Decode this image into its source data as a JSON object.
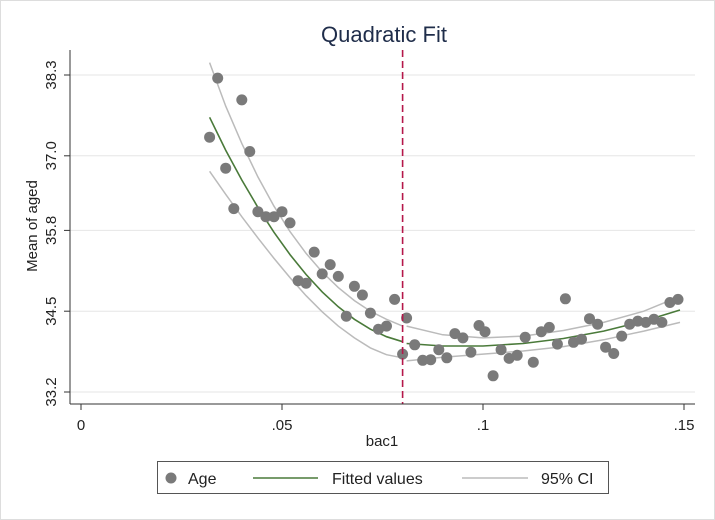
{
  "chart_data": {
    "type": "scatter",
    "title": "Quadratic Fit",
    "xlabel": "bac1",
    "ylabel": "Mean of aged",
    "xlim": [
      0,
      0.15
    ],
    "ylim": [
      33.2,
      38.3
    ],
    "xticks": [
      0,
      0.05,
      0.1,
      0.15
    ],
    "xtick_labels": [
      "0",
      ".05",
      ".1",
      ".15"
    ],
    "yticks": [
      33.2,
      34.5,
      35.8,
      37.0,
      38.3
    ],
    "ytick_labels": [
      "33.2",
      "34.5",
      "35.8",
      "37.0",
      "38.3"
    ],
    "cutoff_x": 0.08,
    "grid": true,
    "legend_position": "bottom",
    "colors": {
      "points": "#7a7a7a",
      "fitted": "#4a7a3a",
      "ci": "#bbbbbb",
      "cutoff": "#b5174a"
    },
    "legend": [
      {
        "label": "Age",
        "kind": "marker"
      },
      {
        "label": "Fitted values",
        "kind": "fitted-line"
      },
      {
        "label": "95% CI",
        "kind": "ci-line"
      }
    ],
    "series": [
      {
        "name": "Age",
        "kind": "scatter",
        "points": [
          [
            0.032,
            37.3
          ],
          [
            0.034,
            38.25
          ],
          [
            0.036,
            36.8
          ],
          [
            0.038,
            36.15
          ],
          [
            0.04,
            37.9
          ],
          [
            0.042,
            37.07
          ],
          [
            0.044,
            36.1
          ],
          [
            0.046,
            36.02
          ],
          [
            0.048,
            36.02
          ],
          [
            0.05,
            36.1
          ],
          [
            0.052,
            35.92
          ],
          [
            0.054,
            34.99
          ],
          [
            0.056,
            34.95
          ],
          [
            0.058,
            35.45
          ],
          [
            0.06,
            35.1
          ],
          [
            0.062,
            35.25
          ],
          [
            0.064,
            35.06
          ],
          [
            0.066,
            34.42
          ],
          [
            0.068,
            34.9
          ],
          [
            0.07,
            34.76
          ],
          [
            0.072,
            34.47
          ],
          [
            0.074,
            34.21
          ],
          [
            0.076,
            34.26
          ],
          [
            0.078,
            34.69
          ],
          [
            0.08,
            33.81
          ],
          [
            0.081,
            34.39
          ],
          [
            0.083,
            33.96
          ],
          [
            0.085,
            33.71
          ],
          [
            0.087,
            33.72
          ],
          [
            0.089,
            33.88
          ],
          [
            0.091,
            33.75
          ],
          [
            0.093,
            34.14
          ],
          [
            0.095,
            34.07
          ],
          [
            0.097,
            33.84
          ],
          [
            0.099,
            34.27
          ],
          [
            0.1005,
            34.17
          ],
          [
            0.1025,
            33.46
          ],
          [
            0.1045,
            33.88
          ],
          [
            0.1065,
            33.74
          ],
          [
            0.1085,
            33.79
          ],
          [
            0.1105,
            34.08
          ],
          [
            0.1125,
            33.68
          ],
          [
            0.1145,
            34.17
          ],
          [
            0.1165,
            34.24
          ],
          [
            0.1185,
            33.97
          ],
          [
            0.1205,
            34.7
          ],
          [
            0.1225,
            34.0
          ],
          [
            0.1245,
            34.05
          ],
          [
            0.1265,
            34.38
          ],
          [
            0.1285,
            34.29
          ],
          [
            0.1305,
            33.92
          ],
          [
            0.1325,
            33.82
          ],
          [
            0.1345,
            34.1
          ],
          [
            0.1365,
            34.29
          ],
          [
            0.1385,
            34.34
          ],
          [
            0.1405,
            34.32
          ],
          [
            0.1425,
            34.37
          ],
          [
            0.1445,
            34.32
          ],
          [
            0.1465,
            34.64
          ],
          [
            0.1485,
            34.69
          ]
        ]
      },
      {
        "name": "Fitted values",
        "kind": "line",
        "segments": [
          [
            [
              0.032,
              37.62
            ],
            [
              0.036,
              37.09
            ],
            [
              0.04,
              36.61
            ],
            [
              0.044,
              36.17
            ],
            [
              0.048,
              35.77
            ],
            [
              0.052,
              35.41
            ],
            [
              0.056,
              35.09
            ],
            [
              0.06,
              34.81
            ],
            [
              0.064,
              34.57
            ],
            [
              0.068,
              34.37
            ],
            [
              0.072,
              34.21
            ],
            [
              0.076,
              34.09
            ],
            [
              0.08,
              34.01
            ]
          ],
          [
            [
              0.081,
              33.98
            ],
            [
              0.09,
              33.94
            ],
            [
              0.1,
              33.94
            ],
            [
              0.11,
              33.98
            ],
            [
              0.12,
              34.06
            ],
            [
              0.13,
              34.18
            ],
            [
              0.14,
              34.34
            ],
            [
              0.149,
              34.52
            ]
          ]
        ]
      },
      {
        "name": "95% CI",
        "kind": "line",
        "segments": [
          [
            [
              0.032,
              38.5
            ],
            [
              0.036,
              37.8
            ],
            [
              0.04,
              37.2
            ],
            [
              0.044,
              36.66
            ],
            [
              0.048,
              36.19
            ],
            [
              0.052,
              35.78
            ],
            [
              0.056,
              35.43
            ],
            [
              0.06,
              35.13
            ],
            [
              0.064,
              34.88
            ],
            [
              0.068,
              34.67
            ],
            [
              0.072,
              34.5
            ],
            [
              0.076,
              34.37
            ],
            [
              0.08,
              34.26
            ]
          ],
          [
            [
              0.032,
              36.75
            ],
            [
              0.036,
              36.38
            ],
            [
              0.04,
              36.02
            ],
            [
              0.044,
              35.68
            ],
            [
              0.048,
              35.35
            ],
            [
              0.052,
              35.04
            ],
            [
              0.056,
              34.75
            ],
            [
              0.06,
              34.49
            ],
            [
              0.064,
              34.26
            ],
            [
              0.068,
              34.07
            ],
            [
              0.072,
              33.91
            ],
            [
              0.076,
              33.8
            ],
            [
              0.08,
              33.75
            ]
          ],
          [
            [
              0.081,
              34.26
            ],
            [
              0.09,
              34.12
            ],
            [
              0.1,
              34.07
            ],
            [
              0.11,
              34.1
            ],
            [
              0.12,
              34.19
            ],
            [
              0.13,
              34.32
            ],
            [
              0.14,
              34.5
            ],
            [
              0.149,
              34.74
            ]
          ],
          [
            [
              0.081,
              33.7
            ],
            [
              0.09,
              33.76
            ],
            [
              0.1,
              33.81
            ],
            [
              0.11,
              33.86
            ],
            [
              0.12,
              33.93
            ],
            [
              0.13,
              34.04
            ],
            [
              0.14,
              34.18
            ],
            [
              0.149,
              34.32
            ]
          ]
        ]
      }
    ]
  }
}
